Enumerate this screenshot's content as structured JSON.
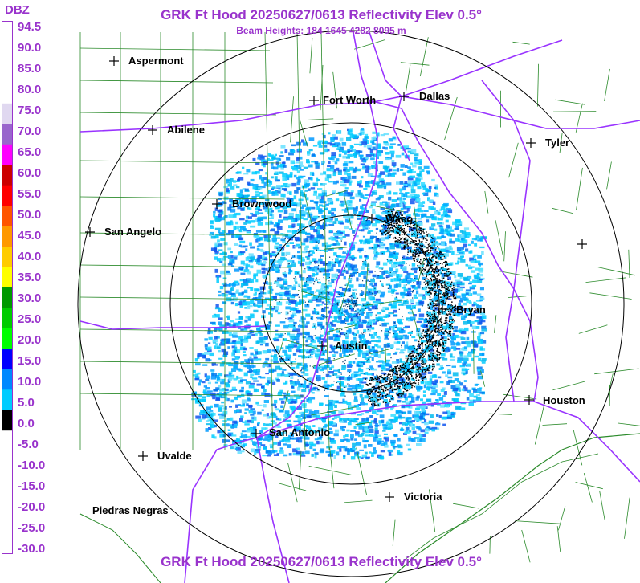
{
  "title_top": "GRK Ft Hood 20250627/0613 Reflectivity Elev 0.5°",
  "subtitle": "Beam Heights: 184 1645 4282 8095 m",
  "title_bottom": "GRK Ft Hood 20250627/0613 Reflectivity Elev 0.5°",
  "legend": {
    "title": "DBZ",
    "labels": [
      "94.5",
      "90.0",
      "85.0",
      "80.0",
      "75.0",
      "70.0",
      "65.0",
      "60.0",
      "55.0",
      "50.0",
      "45.0",
      "40.0",
      "35.0",
      "30.0",
      "25.0",
      "20.0",
      "15.0",
      "10.0",
      "5.0",
      "0.0",
      "-5.0",
      "-10.0",
      "-15.0",
      "-20.0",
      "-25.0",
      "-30.0"
    ],
    "colors": [
      "#ffffff",
      "#ffffff",
      "#ffffff",
      "#ffffff",
      "#e0d8f0",
      "#9966cc",
      "#ff00ff",
      "#cc0000",
      "#ff0000",
      "#ff5500",
      "#ff9900",
      "#ffcc00",
      "#ffff00",
      "#009900",
      "#00cc00",
      "#00ff00",
      "#0000ff",
      "#0088ff",
      "#00ccff",
      "#000000",
      "#ffffff",
      "#ffffff",
      "#ffffff",
      "#ffffff",
      "#ffffff",
      "#ffffff"
    ]
  },
  "cities": [
    {
      "name": "Aspermont"
    },
    {
      "name": "Abilene"
    },
    {
      "name": "Fort Worth"
    },
    {
      "name": "Dallas"
    },
    {
      "name": "Tyler"
    },
    {
      "name": "Brownwood"
    },
    {
      "name": "Waco"
    },
    {
      "name": "San Angelo"
    },
    {
      "name": "Bryan"
    },
    {
      "name": "Austin"
    },
    {
      "name": "Houston"
    },
    {
      "name": "San Antonio"
    },
    {
      "name": "Uvalde"
    },
    {
      "name": "Victoria"
    },
    {
      "name": "Piedras Negras"
    },
    {
      "name": ""
    }
  ],
  "colors": {
    "accent": "#9933cc",
    "county": "#2a8a2a",
    "highway": "#9933ff",
    "range_ring": "#000000"
  }
}
